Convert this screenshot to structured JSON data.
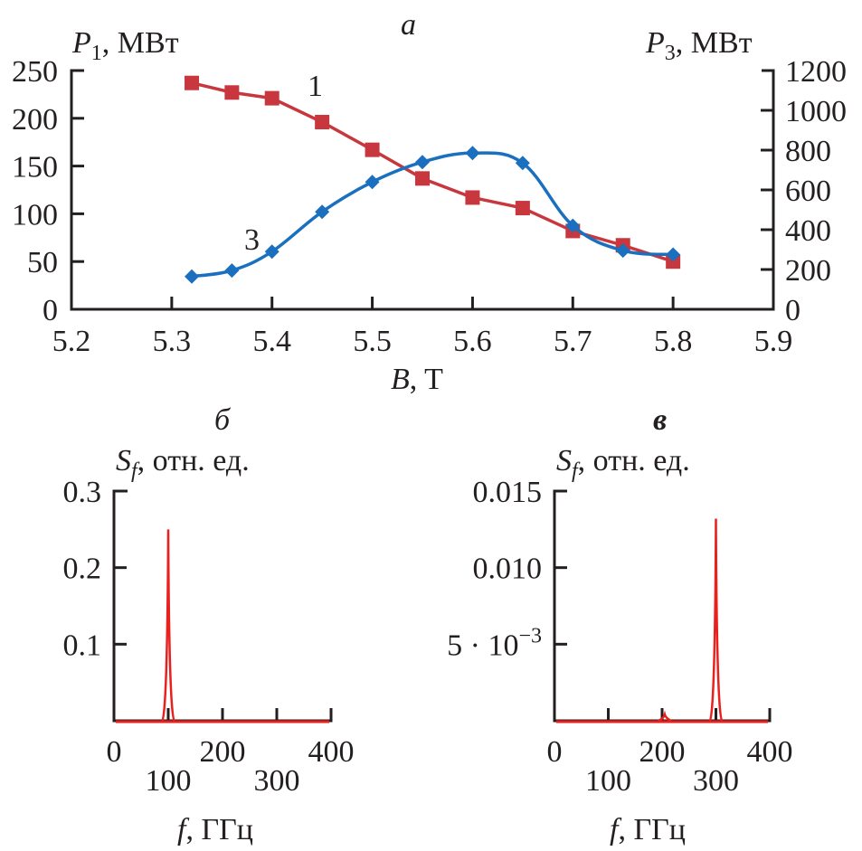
{
  "chart_data": [
    {
      "id": "a",
      "panel_label": "a",
      "type": "line",
      "title": "",
      "xlabel": "B, T",
      "xlabel_var": "B",
      "xlabel_unit": ", T",
      "ylabel_left": "P1, МВт",
      "ylabel_left_var": "P",
      "ylabel_left_sub": "1",
      "ylabel_left_unit": ", МВт",
      "ylabel_right": "P3, МВт",
      "ylabel_right_var": "P",
      "ylabel_right_sub": "3",
      "ylabel_right_unit": ", МВт",
      "xlim": [
        5.2,
        5.9
      ],
      "ylim_left": [
        0,
        250
      ],
      "ylim_right": [
        0,
        1200
      ],
      "xticks": [
        "5.2",
        "5.3",
        "5.4",
        "5.5",
        "5.6",
        "5.7",
        "5.8",
        "5.9"
      ],
      "yticks_left": [
        "0",
        "50",
        "100",
        "150",
        "200",
        "250"
      ],
      "yticks_right": [
        "0",
        "200",
        "400",
        "600",
        "800",
        "1000",
        "1200"
      ],
      "grid": false,
      "series": [
        {
          "name": "1",
          "label": "1",
          "axis": "left",
          "color": "#c8373d",
          "marker": "square",
          "x": [
            5.32,
            5.36,
            5.4,
            5.45,
            5.5,
            5.55,
            5.6,
            5.65,
            5.7,
            5.75,
            5.8
          ],
          "values": [
            237,
            227,
            221,
            196,
            167,
            137,
            117,
            106,
            82,
            67,
            50
          ]
        },
        {
          "name": "3",
          "label": "3",
          "axis": "right",
          "color": "#1a6fbf",
          "marker": "diamond",
          "x": [
            5.32,
            5.36,
            5.4,
            5.45,
            5.5,
            5.55,
            5.6,
            5.65,
            5.7,
            5.75,
            5.8
          ],
          "values": [
            165,
            195,
            290,
            490,
            640,
            740,
            785,
            735,
            420,
            295,
            275
          ]
        }
      ]
    },
    {
      "id": "b",
      "panel_label": "б",
      "type": "line",
      "xlabel": "f, ГГц",
      "xlabel_var": "f",
      "xlabel_unit": ", ГГц",
      "ylabel": "Sf, отн. ед.",
      "ylabel_var": "S",
      "ylabel_sub": "f",
      "ylabel_unit": ", отн. ед.",
      "xlim": [
        0,
        400
      ],
      "ylim": [
        0,
        0.3
      ],
      "xticks": [
        "0",
        "100",
        "200",
        "300",
        "400"
      ],
      "yticks": [
        "0.1",
        "0.2",
        "0.3"
      ],
      "grid": false,
      "series": [
        {
          "name": "spectrum",
          "color": "#e8211f",
          "peaks": [
            {
              "f": 100,
              "value": 0.25
            }
          ]
        }
      ]
    },
    {
      "id": "c",
      "panel_label": "в",
      "type": "line",
      "xlabel": "f, ГГц",
      "xlabel_var": "f",
      "xlabel_unit": ", ГГц",
      "ylabel": "Sf, отн. ед.",
      "ylabel_var": "S",
      "ylabel_sub": "f",
      "ylabel_unit": ", отн. ед.",
      "xlim": [
        0,
        400
      ],
      "ylim": [
        0,
        0.015
      ],
      "xticks": [
        "0",
        "100",
        "200",
        "300",
        "400"
      ],
      "yticks": [
        "5 · 10−3",
        "0.010",
        "0.015"
      ],
      "ytick_first_base": "5 · 10",
      "ytick_first_exp": "−3",
      "grid": false,
      "series": [
        {
          "name": "spectrum",
          "color": "#e8211f",
          "peaks": [
            {
              "f": 300,
              "value": 0.0132
            },
            {
              "f": 205,
              "value": 0.0004
            }
          ]
        }
      ]
    }
  ]
}
